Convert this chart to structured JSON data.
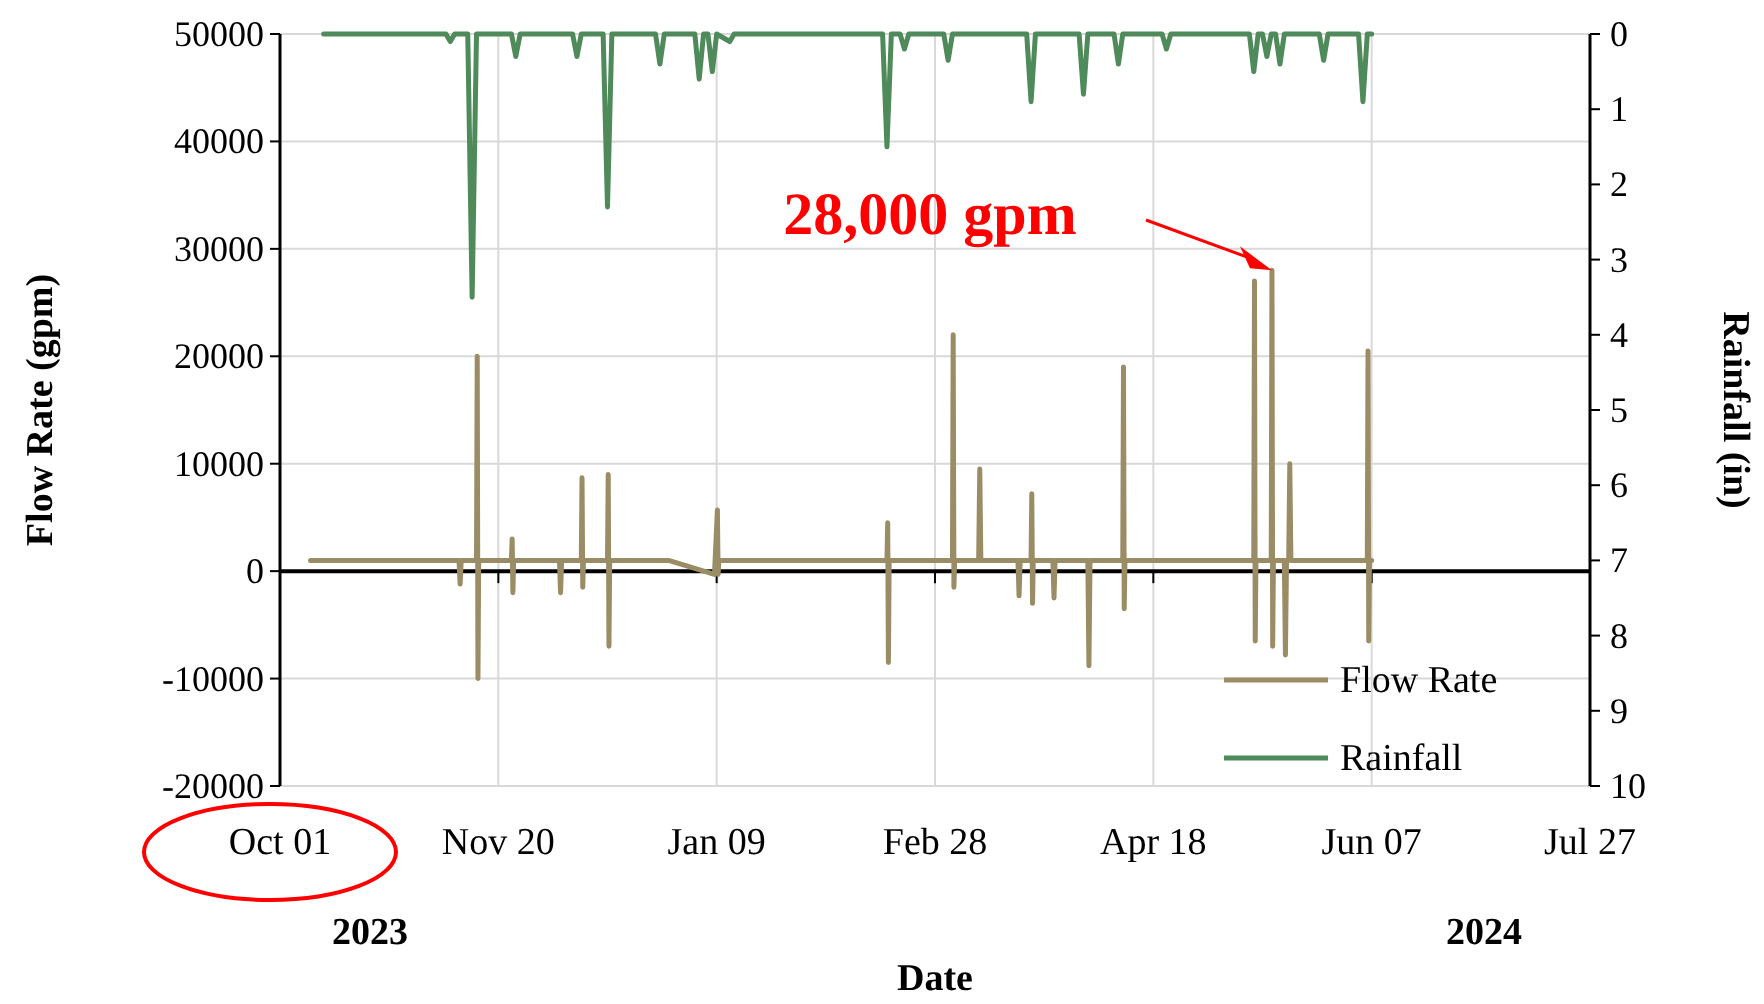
{
  "chart_data": {
    "type": "line",
    "xlabel": "Date",
    "ylabel": "Flow Rate (gpm)",
    "y2label": "Rainfall (in)",
    "xlim": [
      "2023-10-01",
      "2024-07-27"
    ],
    "xticks": [
      {
        "value": "2023-10-01",
        "label": "Oct 01"
      },
      {
        "value": "2023-11-20",
        "label": "Nov 20"
      },
      {
        "value": "2024-01-09",
        "label": "Jan 09"
      },
      {
        "value": "2024-02-28",
        "label": "Feb 28"
      },
      {
        "value": "2024-04-18",
        "label": "Apr 18"
      },
      {
        "value": "2024-06-07",
        "label": "Jun 07"
      },
      {
        "value": "2024-07-27",
        "label": "Jul 27"
      }
    ],
    "ylim": [
      -20000,
      50000
    ],
    "yticks": [
      -20000,
      -10000,
      0,
      10000,
      20000,
      30000,
      40000,
      50000
    ],
    "y2lim": [
      10,
      0
    ],
    "y2ticks": [
      0,
      1,
      2,
      3,
      4,
      5,
      6,
      7,
      8,
      9,
      10
    ],
    "grid": true,
    "legend": "bottom right",
    "marker": "none",
    "line_style": "solid",
    "annotations": [
      "2023",
      "2024",
      "28,000 gpm"
    ],
    "series": [
      {
        "name": "Flow Rate",
        "color": "#9a8c64",
        "x": [
          "2023-10-08",
          "2023-11-11T00:00",
          "2023-11-11T06:00",
          "2023-11-11T12:00",
          "2023-11-15T00:00",
          "2023-11-15T04:00",
          "2023-11-15T08:00",
          "2023-11-15T12:00",
          "2023-11-23T00:00",
          "2023-11-23T04:00",
          "2023-11-23T08:00",
          "2023-11-23T12:00",
          "2023-12-04T00:00",
          "2023-12-04T06:00",
          "2023-12-04T12:00",
          "2023-12-09T00:00",
          "2023-12-09T04:00",
          "2023-12-09T08:00",
          "2023-12-09T12:00",
          "2023-12-15T00:00",
          "2023-12-15T04:00",
          "2023-12-15T08:00",
          "2023-12-15T12:00",
          "2023-12-29",
          "2024-01-08T12:00",
          "2024-01-09T04:00",
          "2024-01-09T08:00",
          "2024-01-09T12:00",
          "2024-02-17T00:00",
          "2024-02-17T04:00",
          "2024-02-17T08:00",
          "2024-02-17T12:00",
          "2024-03-03T00:00",
          "2024-03-03T04:00",
          "2024-03-03T08:00",
          "2024-03-03T12:00",
          "2024-03-09T00:00",
          "2024-03-09T06:00",
          "2024-03-09T12:00",
          "2024-03-18T00:00",
          "2024-03-18T06:00",
          "2024-03-18T12:00",
          "2024-03-21T00:00",
          "2024-03-21T04:00",
          "2024-03-21T08:00",
          "2024-03-21T12:00",
          "2024-03-26T00:00",
          "2024-03-26T06:00",
          "2024-03-26T12:00",
          "2024-04-03T00:00",
          "2024-04-03T06:00",
          "2024-04-03T12:00",
          "2024-04-11T00:00",
          "2024-04-11T04:00",
          "2024-04-11T08:00",
          "2024-04-11T12:00",
          "2024-05-11T00:00",
          "2024-05-11T04:00",
          "2024-05-11T08:00",
          "2024-05-11T12:00",
          "2024-05-15T00:00",
          "2024-05-15T04:00",
          "2024-05-15T08:00",
          "2024-05-15T12:00",
          "2024-05-18T00:00",
          "2024-05-18T06:00",
          "2024-05-18T12:00",
          "2024-05-19T00:00",
          "2024-05-19T06:00",
          "2024-05-19T12:00",
          "2024-06-06T00:00",
          "2024-06-06T04:00",
          "2024-06-06T08:00",
          "2024-06-06T12:00",
          "2024-06-07"
        ],
        "values": [
          1000,
          1000,
          -1200,
          1000,
          1000,
          20000,
          -10000,
          1000,
          1000,
          3000,
          -2000,
          1000,
          1000,
          -2000,
          1000,
          1000,
          8700,
          -1500,
          1000,
          1000,
          9000,
          -7000,
          1000,
          1000,
          -300,
          5700,
          -300,
          1000,
          1000,
          4500,
          -8500,
          1000,
          1000,
          22000,
          -1500,
          1000,
          1000,
          9500,
          1000,
          1000,
          -2300,
          1000,
          1000,
          7200,
          -3000,
          1000,
          1000,
          -2500,
          1000,
          1000,
          -8800,
          1000,
          1000,
          19000,
          -3500,
          1000,
          1000,
          27000,
          -6500,
          1000,
          1000,
          28000,
          -7000,
          1000,
          1000,
          -7800,
          1000,
          1000,
          10000,
          1000,
          1000,
          20500,
          -6500,
          1000,
          1000
        ]
      },
      {
        "name": "Rainfall",
        "color": "#4e8a5a",
        "axis": "y2",
        "x": [
          "2023-10-11",
          "2023-11-08",
          "2023-11-09",
          "2023-11-10",
          "2023-11-13",
          "2023-11-14",
          "2023-11-15",
          "2023-11-23",
          "2023-11-24",
          "2023-11-25",
          "2023-12-07",
          "2023-12-08",
          "2023-12-09",
          "2023-12-14",
          "2023-12-15",
          "2023-12-16",
          "2023-12-26",
          "2023-12-27",
          "2023-12-28",
          "2024-01-04",
          "2024-01-05",
          "2024-01-06",
          "2024-01-07",
          "2024-01-08",
          "2024-01-09",
          "2024-01-12",
          "2024-01-13",
          "2024-02-16",
          "2024-02-17",
          "2024-02-18",
          "2024-02-20",
          "2024-02-21",
          "2024-02-22",
          "2024-03-01",
          "2024-03-02",
          "2024-03-03",
          "2024-03-20",
          "2024-03-21",
          "2024-03-22",
          "2024-04-01",
          "2024-04-02",
          "2024-04-03",
          "2024-04-09",
          "2024-04-10",
          "2024-04-11",
          "2024-04-20",
          "2024-04-21",
          "2024-04-22",
          "2024-05-10",
          "2024-05-11",
          "2024-05-12",
          "2024-05-13",
          "2024-05-14",
          "2024-05-15",
          "2024-05-16",
          "2024-05-17",
          "2024-05-18",
          "2024-05-26",
          "2024-05-27",
          "2024-05-28",
          "2024-06-04",
          "2024-06-05",
          "2024-06-06",
          "2024-06-07"
        ],
        "values": [
          0,
          0,
          0.1,
          0,
          0,
          3.5,
          0,
          0,
          0.3,
          0,
          0,
          0.3,
          0,
          0,
          2.3,
          0,
          0,
          0.4,
          0,
          0,
          0.6,
          0,
          0,
          0.5,
          0,
          0.1,
          0,
          0,
          1.5,
          0,
          0,
          0.2,
          0,
          0,
          0.35,
          0,
          0,
          0.9,
          0,
          0,
          0.8,
          0,
          0,
          0.4,
          0,
          0,
          0.2,
          0,
          0,
          0.5,
          0,
          0,
          0.3,
          0,
          0,
          0.4,
          0,
          0,
          0.35,
          0,
          0,
          0.9,
          0,
          0
        ]
      }
    ]
  }
}
